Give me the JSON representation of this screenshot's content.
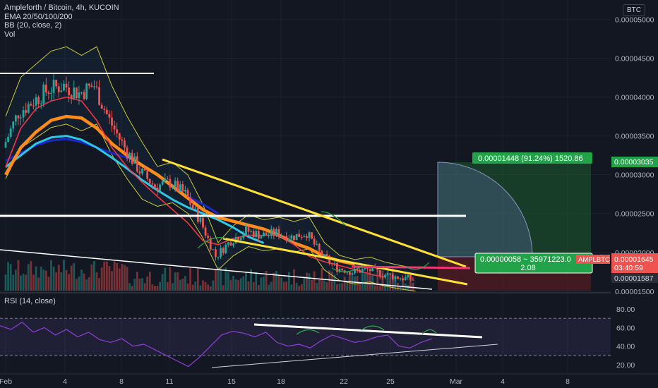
{
  "legend": {
    "title": "Ampleforth / Bitcoin, 4h, KUCOIN",
    "ema": "EMA 20/50/100/200",
    "bb": "BB (20, close, 2)",
    "vol": "Vol"
  },
  "rsi_legend": "RSI (14, close)",
  "currency_button": "BTC",
  "price_labels": {
    "target": "0.00003035",
    "symbol": "AMPLBTC",
    "last": "0.00001645",
    "countdown": "03:40:59",
    "low": "0.00001587"
  },
  "position_tool": {
    "profit_text": "0.00001448 (91.24%) 1520.86",
    "risk_line1": "0.00000058 ~ 35971223.0",
    "risk_line2": "2.08"
  },
  "colors": {
    "background": "#131722",
    "grid": "#1e222d",
    "up": "#26a69a",
    "down": "#ef5350",
    "ema20": "#f23645",
    "ema50": "#ff8c1a",
    "ema100": "#2ec8e6",
    "ema200": "#1a27c9",
    "bb": "#c9c93a",
    "trend_yellow": "#ffe135",
    "profit_zone": "#1d6b2e",
    "loss_zone": "#6b1d23",
    "rsi_line": "#8e3fd6"
  },
  "chart_data": [
    {
      "type": "candlestick",
      "title": "Ampleforth / Bitcoin, 4h, KUCOIN",
      "x_ticks": [
        "Feb",
        "4",
        "8",
        "11",
        "15",
        "18",
        "22",
        "25",
        "Mar",
        "4",
        "8"
      ],
      "y_ticks": [
        "0.00005000",
        "0.00004500",
        "0.00004000",
        "0.00003500",
        "0.00003000",
        "0.00002500",
        "0.00002000",
        "0.00001500"
      ],
      "ylim": [
        1.48e-05,
        5.25e-05
      ],
      "close_path": [
        {
          "day": 0,
          "close": 3.35e-05
        },
        {
          "day": 1,
          "close": 3.8e-05
        },
        {
          "day": 2,
          "close": 3.95e-05
        },
        {
          "day": 3,
          "close": 4.1e-05
        },
        {
          "day": 4,
          "close": 4.15e-05
        },
        {
          "day": 5,
          "close": 4.05e-05
        },
        {
          "day": 6,
          "close": 4.15e-05
        },
        {
          "day": 7,
          "close": 3.7e-05
        },
        {
          "day": 8,
          "close": 3.35e-05
        },
        {
          "day": 9,
          "close": 3.05e-05
        },
        {
          "day": 10,
          "close": 2.85e-05
        },
        {
          "day": 11,
          "close": 2.9e-05
        },
        {
          "day": 12,
          "close": 2.75e-05
        },
        {
          "day": 13,
          "close": 2.4e-05
        },
        {
          "day": 14,
          "close": 1.95e-05
        },
        {
          "day": 15,
          "close": 2.15e-05
        },
        {
          "day": 16,
          "close": 2.28e-05
        },
        {
          "day": 17,
          "close": 2.22e-05
        },
        {
          "day": 18,
          "close": 2.25e-05
        },
        {
          "day": 19,
          "close": 2.2e-05
        },
        {
          "day": 20,
          "close": 2.25e-05
        },
        {
          "day": 21,
          "close": 1.95e-05
        },
        {
          "day": 22,
          "close": 1.8e-05
        },
        {
          "day": 23,
          "close": 1.75e-05
        },
        {
          "day": 24,
          "close": 1.78e-05
        },
        {
          "day": 25,
          "close": 1.72e-05
        },
        {
          "day": 26,
          "close": 1.68e-05
        },
        {
          "day": 27,
          "close": 1.65e-05
        }
      ],
      "ema20": [
        3.1e-05,
        3.6e-05,
        3.85e-05,
        3.95e-05,
        4e-05,
        3.95e-05,
        3.7e-05,
        3.35e-05,
        3.1e-05,
        2.9e-05,
        2.72e-05,
        2.55e-05,
        2.38e-05,
        2.15e-05,
        2.1e-05,
        2.18e-05,
        2.22e-05,
        2.22e-05,
        2.22e-05,
        2.1e-05,
        1.95e-05,
        1.88e-05,
        1.83e-05,
        1.78e-05,
        1.72e-05,
        1.68e-05
      ],
      "ema50": [
        3e-05,
        3.35e-05,
        3.55e-05,
        3.7e-05,
        3.75e-05,
        3.73e-05,
        3.6e-05,
        3.4e-05,
        3.25e-05,
        3.12e-05,
        3e-05,
        2.85e-05,
        2.7e-05,
        2.55e-05,
        2.45e-05,
        2.4e-05,
        2.35e-05,
        2.3e-05,
        2.22e-05,
        2.12e-05,
        2.05e-05,
        1.95e-05,
        1.89e-05,
        1.85e-05
      ],
      "ema100": [
        3.1e-05,
        3.25e-05,
        3.4e-05,
        3.48e-05,
        3.5e-05,
        3.45e-05,
        3.35e-05,
        3.22e-05,
        3.08e-05,
        2.93e-05,
        2.8e-05,
        2.68e-05,
        2.58e-05,
        2.5e-05,
        2.42e-05,
        2.32e-05,
        2.2e-05,
        2.12e-05
      ],
      "ema200": [
        3.18e-05,
        3.28e-05,
        3.38e-05,
        3.44e-05,
        3.46e-05,
        3.42e-05,
        3.35e-05,
        3.28e-05,
        3.22e-05,
        3.13e-05,
        3e-05,
        2.85e-05,
        2.72e-05,
        2.62e-05,
        2.5e-05
      ],
      "horizontal_levels": [
        4.35e-05,
        2.27e-05
      ],
      "long_position": {
        "entry": 1.59e-05,
        "target": 3.035e-05,
        "stop": 1.532e-05
      }
    },
    {
      "type": "line",
      "title": "RSI (14, close)",
      "y_ticks": [
        "80.00",
        "60.00",
        "40.00",
        "20.00"
      ],
      "ylim": [
        10,
        90
      ],
      "bands": [
        70,
        30
      ],
      "values": [
        62,
        58,
        66,
        55,
        60,
        52,
        58,
        50,
        55,
        47,
        44,
        48,
        40,
        42,
        36,
        30,
        24,
        18,
        28,
        40,
        52,
        56,
        54,
        50,
        55,
        44,
        40,
        42,
        38,
        46,
        52,
        48,
        44,
        46,
        50,
        52,
        40,
        38,
        44,
        48
      ]
    }
  ]
}
